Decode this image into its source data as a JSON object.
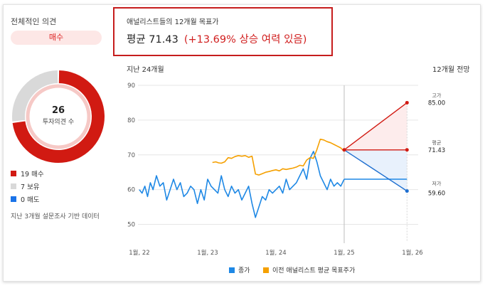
{
  "consensus": {
    "title": "전체적인 의견",
    "rating": "매수",
    "total": "26",
    "total_label": "투자의견 수",
    "items": [
      {
        "label": "19 매수",
        "count": 19,
        "color": "#d11a12"
      },
      {
        "label": "7 보유",
        "count": 7,
        "color": "#d9d9d9"
      },
      {
        "label": "0 매도",
        "count": 0,
        "color": "#1a73e8"
      }
    ],
    "footnote": "지난 3개월 설문조사 기반 데이터"
  },
  "target": {
    "title": "애널리스트들의 12개월 목표가",
    "value_text": "평균 71.43",
    "upside_text": "(+13.69% 상승 여력 있음)"
  },
  "labels": {
    "period_left": "지난 24개월",
    "period_right": "12개월 전망",
    "legend_price": "종가",
    "legend_target": "이전 애널리스트 평균 목표주가"
  },
  "colors": {
    "price": "#1e88e5",
    "target": "#f5a000",
    "high": "#d11a12",
    "low": "#1e6fd0",
    "high_fill": "#fdecec",
    "low_fill": "#e8f1fc"
  },
  "chart_data": {
    "type": "line",
    "xticks": [
      "1월, 22",
      "1월, 23",
      "1월, 24",
      "1월, 25",
      "1월, 26"
    ],
    "xlim": [
      0,
      4
    ],
    "ylim": [
      45,
      90
    ],
    "yticks": [
      50,
      60,
      70,
      80,
      90
    ],
    "series": [
      {
        "name": "종가",
        "x": [
          0.0,
          0.04,
          0.08,
          0.12,
          0.16,
          0.2,
          0.25,
          0.3,
          0.35,
          0.4,
          0.45,
          0.5,
          0.55,
          0.6,
          0.65,
          0.7,
          0.75,
          0.8,
          0.85,
          0.9,
          0.95,
          1.0,
          1.05,
          1.1,
          1.15,
          1.2,
          1.25,
          1.3,
          1.35,
          1.4,
          1.45,
          1.5,
          1.55,
          1.6,
          1.65,
          1.7,
          1.75,
          1.8,
          1.85,
          1.9,
          1.95,
          2.0,
          2.05,
          2.1,
          2.15,
          2.2,
          2.25,
          2.3,
          2.35,
          2.4,
          2.45,
          2.5,
          2.55,
          2.6,
          2.65,
          2.7,
          2.75,
          2.8,
          2.85,
          2.9,
          2.95,
          3.0
        ],
        "values": [
          60,
          59,
          61,
          58,
          62,
          60,
          64,
          61,
          62,
          57,
          60,
          63,
          60,
          62,
          58,
          59,
          61,
          60,
          56,
          60,
          57,
          63,
          61,
          60,
          59,
          64,
          60,
          58,
          61,
          59,
          60,
          57,
          59,
          61,
          56,
          52,
          55,
          58,
          57,
          60,
          59,
          60,
          61,
          59,
          63,
          60,
          61,
          62,
          64,
          66,
          63,
          69,
          71,
          68,
          64,
          62,
          60,
          63,
          61,
          62,
          61,
          63
        ]
      },
      {
        "name": "이전 애널리스트 평균 목표주가",
        "x": [
          1.07,
          1.12,
          1.16,
          1.2,
          1.25,
          1.3,
          1.35,
          1.4,
          1.45,
          1.5,
          1.55,
          1.6,
          1.65,
          1.7,
          1.75,
          1.8,
          1.85,
          1.9,
          1.95,
          2.0,
          2.05,
          2.1,
          2.15,
          2.2,
          2.25,
          2.3,
          2.35,
          2.4,
          2.45,
          2.5,
          2.55,
          2.6,
          2.65,
          2.7,
          2.75,
          2.8,
          2.85,
          2.9,
          2.95,
          3.0
        ],
        "values": [
          67.8,
          68.0,
          67.7,
          67.6,
          68.0,
          69.2,
          69.0,
          69.5,
          69.8,
          69.6,
          69.8,
          69.3,
          69.6,
          64.5,
          64.2,
          64.6,
          65.0,
          65.2,
          65.5,
          65.7,
          65.4,
          66.0,
          65.8,
          66.0,
          66.2,
          66.5,
          67.0,
          66.8,
          68.5,
          69.2,
          69.0,
          71.5,
          74.5,
          74.3,
          73.8,
          73.5,
          73.0,
          72.5,
          72.0,
          71.0
        ]
      }
    ],
    "forecast": {
      "start_x": 3.0,
      "end_x": 3.92,
      "start_y": 71.43,
      "high": 85.0,
      "average": 71.43,
      "low": 59.6,
      "flat_line": 63,
      "labels": {
        "high_title": "고가",
        "high_value": "85.00",
        "avg_title": "평균",
        "avg_value": "71.43",
        "low_title": "저가",
        "low_value": "59.60"
      }
    }
  }
}
